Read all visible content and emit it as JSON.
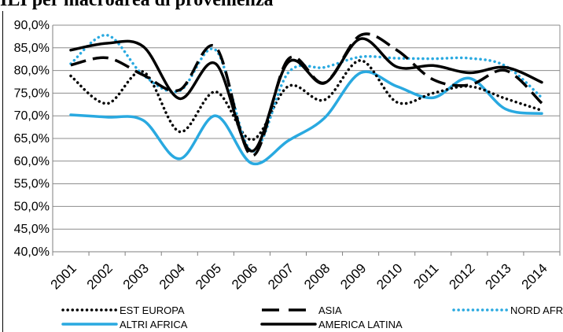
{
  "title": "ILI per macroarea di provenienza",
  "chart_data": {
    "type": "line",
    "title": "ILI per macroarea di provenienza",
    "xlabel": "",
    "ylabel": "",
    "ylim": [
      0.4,
      0.9
    ],
    "yticks": [
      "40,0%",
      "45,0%",
      "50,0%",
      "55,0%",
      "60,0%",
      "65,0%",
      "70,0%",
      "75,0%",
      "80,0%",
      "85,0%",
      "90,0%"
    ],
    "categories": [
      "2001",
      "2002",
      "2003",
      "2004",
      "2005",
      "2006",
      "2007",
      "2008",
      "2009",
      "2010",
      "2011",
      "2012",
      "2013",
      "2014"
    ],
    "grid": true,
    "legend_position": "bottom",
    "series": [
      {
        "name": "EST EUROPA",
        "style": "dotted",
        "color": "#000000",
        "values": [
          0.788,
          0.727,
          0.797,
          0.665,
          0.753,
          0.647,
          0.765,
          0.735,
          0.822,
          0.73,
          0.75,
          0.765,
          0.738,
          0.712
        ]
      },
      {
        "name": "ASIA",
        "style": "dashed",
        "color": "#000000",
        "values": [
          0.812,
          0.828,
          0.79,
          0.757,
          0.852,
          0.612,
          0.825,
          0.773,
          0.878,
          0.845,
          0.78,
          0.768,
          0.8,
          0.728
        ]
      },
      {
        "name": "NORD AFRICA",
        "style": "dotted",
        "color": "#29A9E0",
        "values": [
          0.815,
          0.878,
          0.79,
          0.755,
          0.845,
          0.622,
          0.795,
          0.807,
          0.83,
          0.827,
          0.826,
          0.827,
          0.81,
          0.74
        ]
      },
      {
        "name": "ALTRI AFRICA",
        "style": "solid",
        "color": "#29A9E0",
        "values": [
          0.702,
          0.697,
          0.69,
          0.605,
          0.7,
          0.595,
          0.645,
          0.695,
          0.795,
          0.765,
          0.74,
          0.783,
          0.715,
          0.705
        ]
      },
      {
        "name": "AMERICA LATINA",
        "style": "solid",
        "color": "#000000",
        "values": [
          0.845,
          0.86,
          0.853,
          0.738,
          0.815,
          0.622,
          0.818,
          0.772,
          0.87,
          0.808,
          0.811,
          0.795,
          0.807,
          0.774
        ]
      }
    ]
  }
}
